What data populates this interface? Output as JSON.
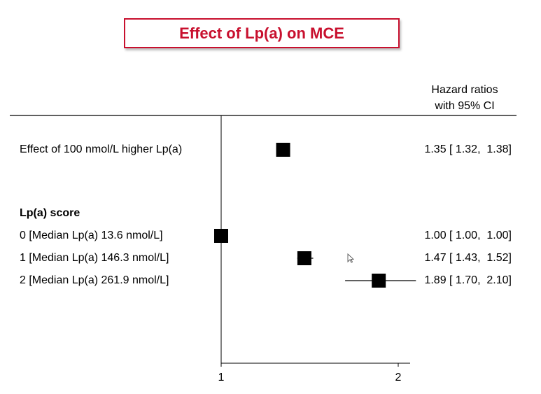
{
  "title": "Effect of Lp(a) on MCE",
  "column_header": {
    "line1": "Hazard ratios",
    "line2": "with 95% CI"
  },
  "colors": {
    "title": "#c8102e",
    "marker": "#000000"
  },
  "chart_data": {
    "type": "forest",
    "xlabel": "",
    "xlim": [
      1,
      2
    ],
    "ticks": [
      "1",
      "2"
    ],
    "reference_line": 1,
    "rows": [
      {
        "label": "Effect of 100 nmol/L higher Lp(a)",
        "bold": false,
        "hr": 1.35,
        "lo": 1.32,
        "hi": 1.38,
        "text": "1.35 [ 1.32,  1.38]"
      },
      {
        "label": "Lp(a) score",
        "bold": true,
        "hr": null,
        "lo": null,
        "hi": null,
        "text": ""
      },
      {
        "label": "0 [Median Lp(a) 13.6 nmol/L]",
        "bold": false,
        "hr": 1.0,
        "lo": 1.0,
        "hi": 1.0,
        "text": "1.00 [ 1.00,  1.00]"
      },
      {
        "label": "1 [Median Lp(a) 146.3 nmol/L]",
        "bold": false,
        "hr": 1.47,
        "lo": 1.43,
        "hi": 1.52,
        "text": "1.47 [ 1.43,  1.52]"
      },
      {
        "label": "2 [Median Lp(a) 261.9 nmol/L]",
        "bold": false,
        "hr": 1.89,
        "lo": 1.7,
        "hi": 2.1,
        "text": "1.89 [ 1.70,  2.10]"
      }
    ]
  }
}
